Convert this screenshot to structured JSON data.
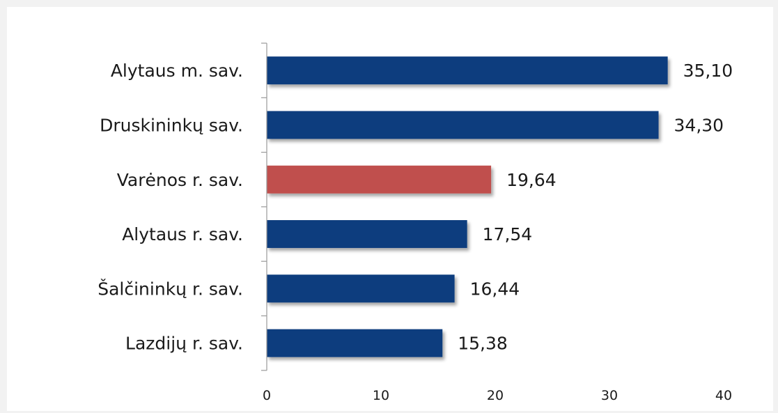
{
  "chart_data": {
    "type": "bar",
    "orientation": "horizontal",
    "categories": [
      "Alytaus m. sav.",
      "Druskininkų sav.",
      "Varėnos r. sav.",
      "Alytaus r. sav.",
      "Šalčininkų r. sav.",
      "Lazdijų r. sav."
    ],
    "values": [
      35.1,
      34.3,
      19.64,
      17.54,
      16.44,
      15.38
    ],
    "value_labels": [
      "35,10",
      "34,30",
      "19,64",
      "17,54",
      "16,44",
      "15,38"
    ],
    "bar_colors": [
      "#0b3d7e",
      "#0b3d7e",
      "#c0504d",
      "#0b3d7e",
      "#0b3d7e",
      "#0b3d7e"
    ],
    "xlim": [
      0,
      40
    ],
    "xticks": [
      0,
      10,
      20,
      30,
      40
    ],
    "xtick_labels": [
      "0",
      "10",
      "20",
      "30",
      "40"
    ],
    "title": "",
    "xlabel": "",
    "ylabel": "",
    "grid": false,
    "legend": "none"
  }
}
